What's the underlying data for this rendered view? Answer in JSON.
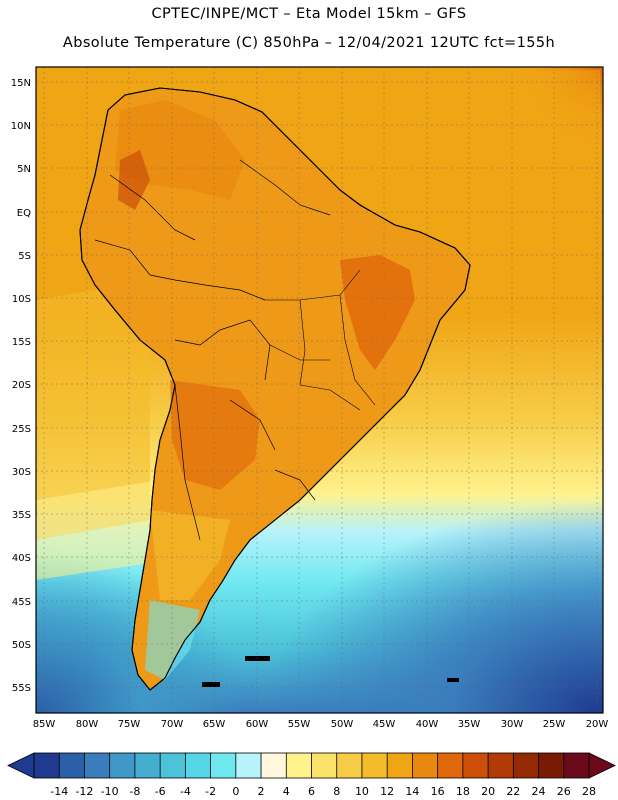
{
  "header": {
    "line1": "CPTEC/INPE/MCT –  Eta Model 15km – GFS",
    "line2": "Absolute Temperature (C) 850hPa – 12/04/2021 12UTC fct=155h"
  },
  "axes": {
    "lat_labels": [
      "15N",
      "10N",
      "5N",
      "EQ",
      "5S",
      "10S",
      "15S",
      "20S",
      "25S",
      "30S",
      "35S",
      "40S",
      "45S",
      "50S",
      "55S"
    ],
    "lon_labels": [
      "85W",
      "80W",
      "75W",
      "70W",
      "65W",
      "60W",
      "55W",
      "50W",
      "45W",
      "40W",
      "35W",
      "30W",
      "25W",
      "20W"
    ]
  },
  "colorbar": {
    "ticks": [
      "-14",
      "-12",
      "-10",
      "-8",
      "-6",
      "-4",
      "-2",
      "0",
      "2",
      "4",
      "6",
      "8",
      "10",
      "12",
      "14",
      "16",
      "18",
      "20",
      "22",
      "24",
      "26",
      "28"
    ],
    "colors": [
      "#1f3a8f",
      "#2b5fa8",
      "#3a7dbd",
      "#3f98c8",
      "#44aed1",
      "#4dc3da",
      "#55d6e6",
      "#6fe8f0",
      "#b6f3fb",
      "#fff8dd",
      "#fff28c",
      "#fbe26a",
      "#f7cd48",
      "#f4bb2a",
      "#f0a514",
      "#e8880e",
      "#e0680a",
      "#cc4e08",
      "#b23a06",
      "#942a05",
      "#7a1a05",
      "#6a0a1a"
    ]
  },
  "map": {
    "colors": {
      "ocean_cold": "#2f66ad",
      "ocean_cool": "#4fc9e0",
      "ocean_mild": "#fbe06a",
      "ocean_warm": "#f0a514",
      "land_hot": "#e0680a",
      "land_mid": "#ee9a18",
      "outline": "#000000"
    }
  }
}
